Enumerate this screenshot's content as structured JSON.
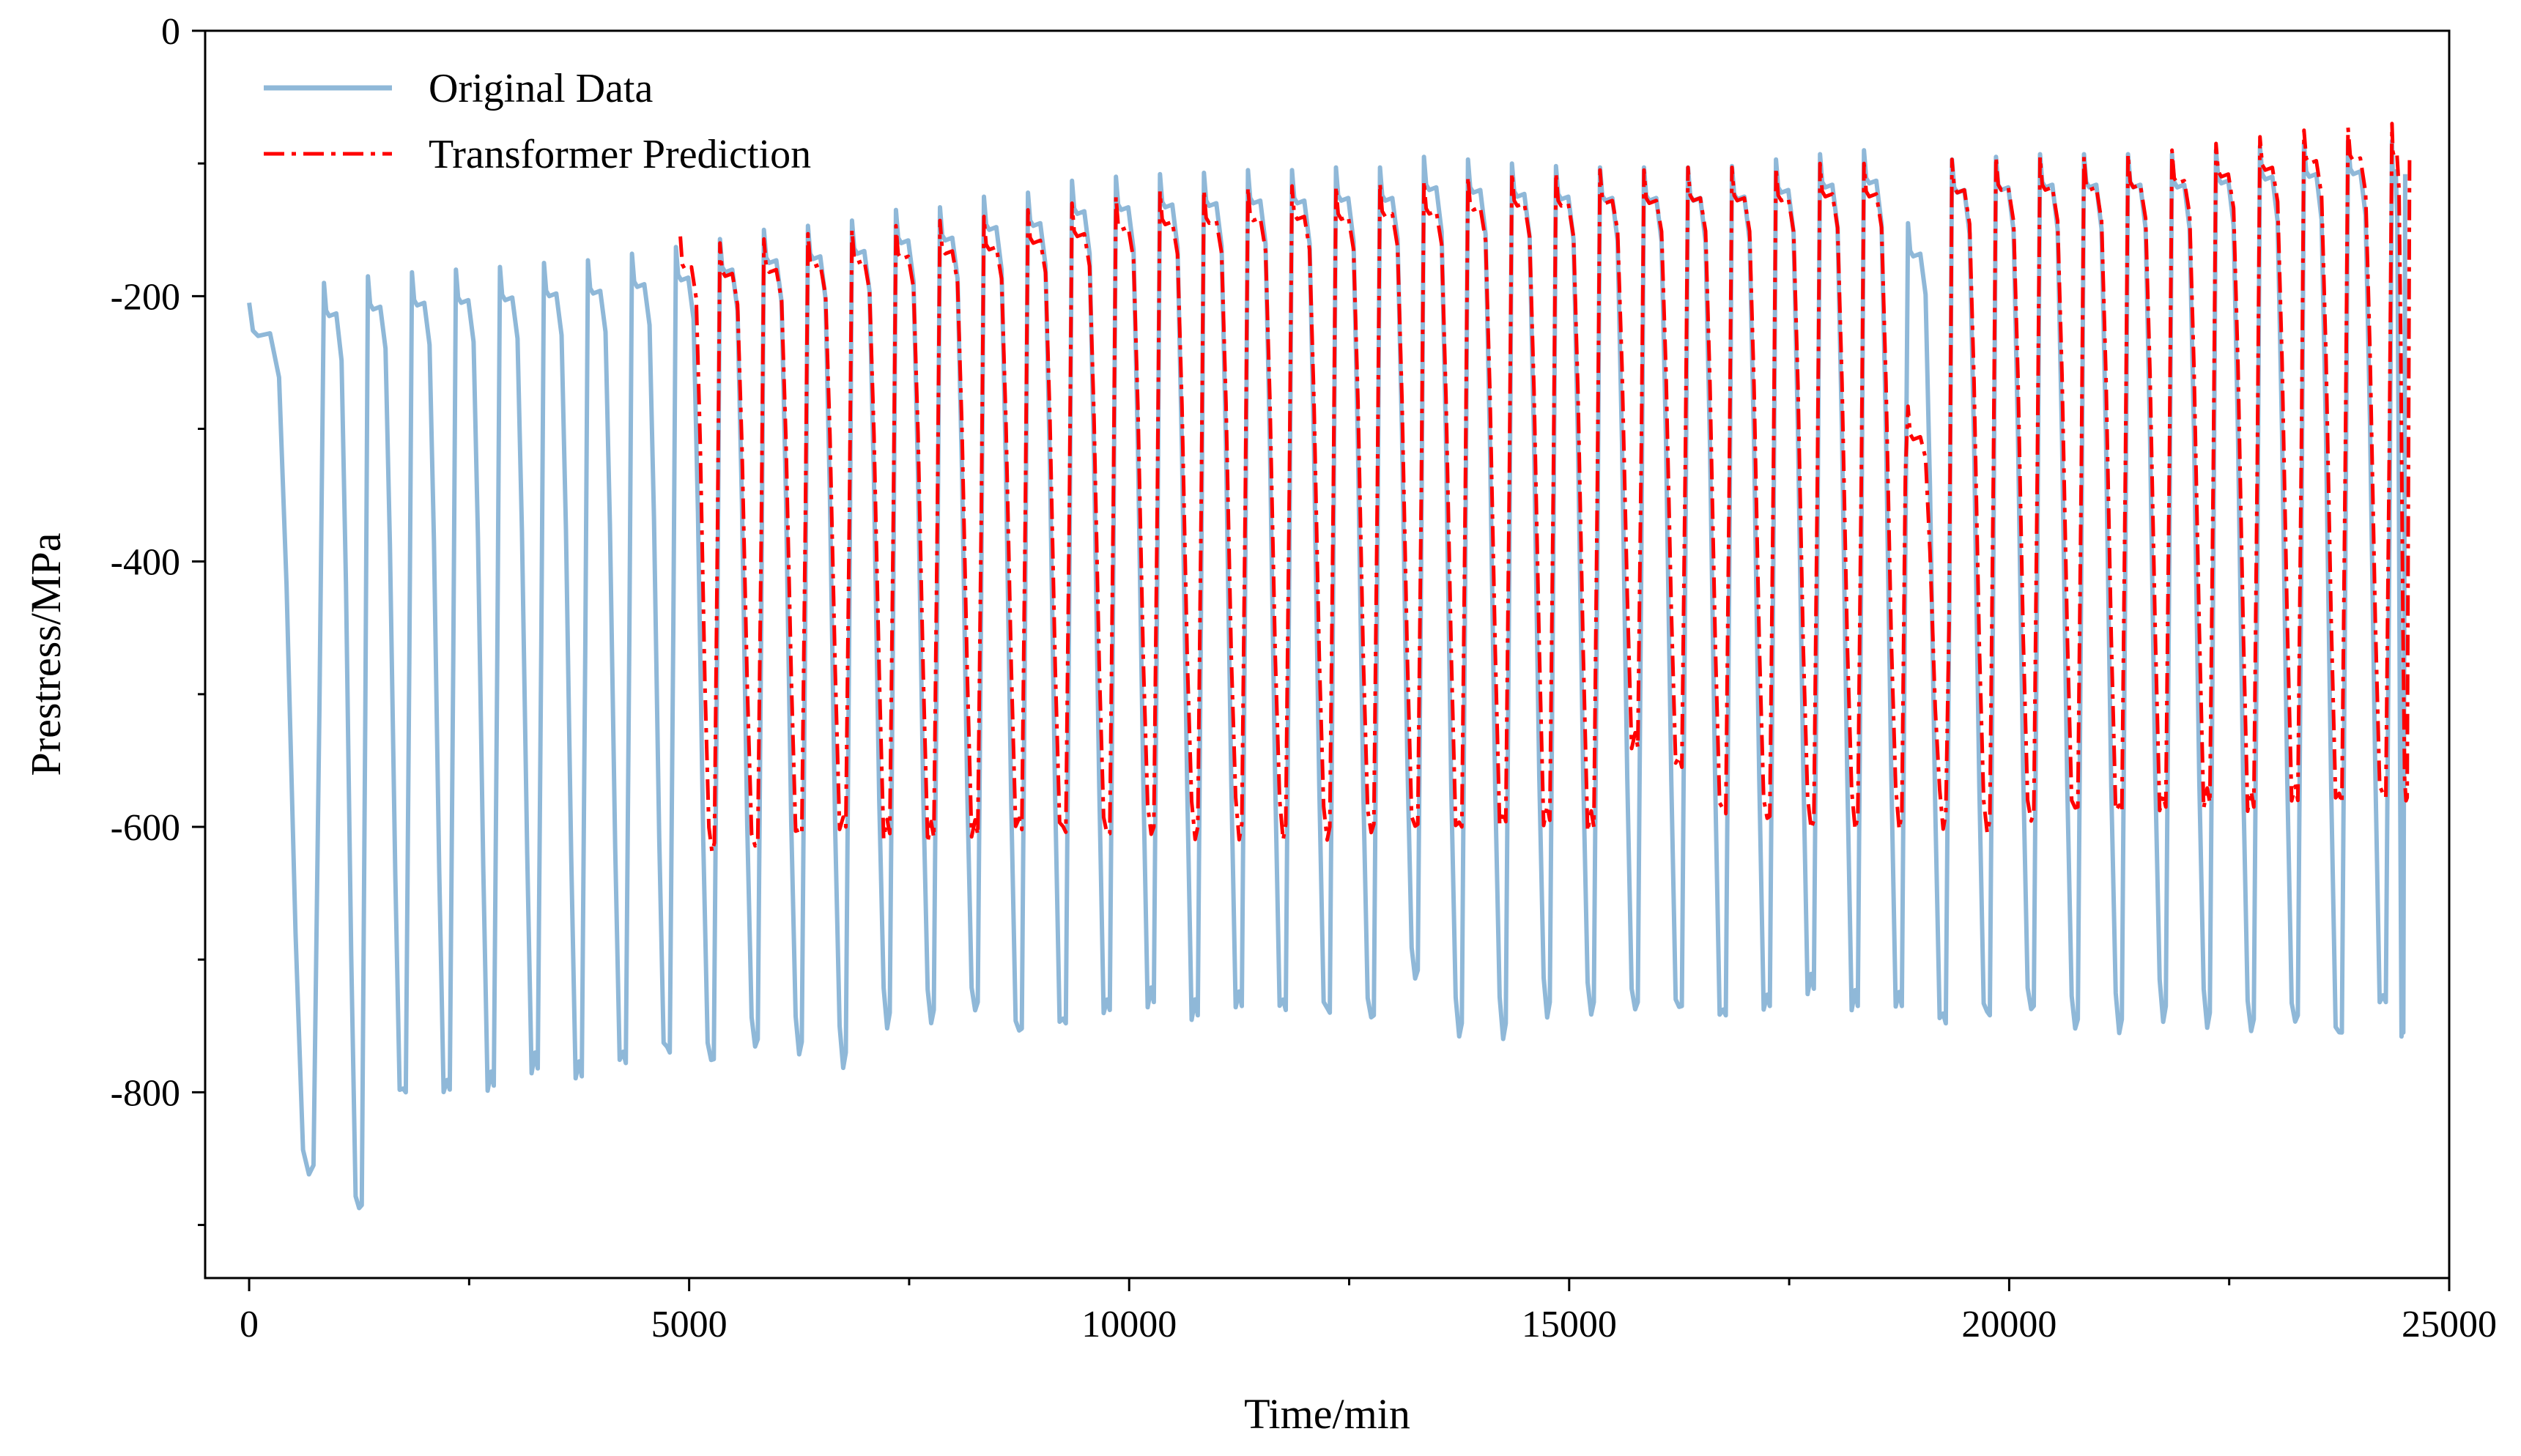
{
  "chart_data": {
    "type": "line",
    "title": "",
    "xlabel": "Time/min",
    "ylabel": "Prestress/MPa",
    "xlim": [
      -500,
      25000
    ],
    "ylim": [
      -940,
      0
    ],
    "x_ticks": [
      0,
      5000,
      10000,
      15000,
      20000,
      25000
    ],
    "x_tick_labels": [
      "0",
      "5000",
      "10000",
      "15000",
      "20000",
      "25000"
    ],
    "y_ticks": [
      0,
      -200,
      -400,
      -600,
      -800
    ],
    "y_tick_labels": [
      "0",
      "-200",
      "-400",
      "-600",
      "-800"
    ],
    "grid": false,
    "legend_position": "top-left",
    "series": [
      {
        "name": "Original Data",
        "color": "#8fb8d8",
        "style": "solid",
        "x_start": 0,
        "x_end": 24500,
        "cycle_start_times": [
          0,
          850,
          1350,
          1850,
          2350,
          2850,
          3350,
          3850,
          4350,
          4850,
          5350,
          5850,
          6350,
          6850,
          7350,
          7850,
          8350,
          8850,
          9350,
          9850,
          10350,
          10850,
          11350,
          11850,
          12350,
          12850,
          13350,
          13850,
          14350,
          14850,
          15350,
          15850,
          16350,
          16850,
          17350,
          17850,
          18350,
          18850,
          19350,
          19850,
          20350,
          20850,
          21350,
          21850,
          22350,
          22850,
          23350,
          23850,
          24350
        ],
        "peaks": [
          -230,
          -215,
          -210,
          -207,
          -205,
          -203,
          -200,
          -198,
          -193,
          -188,
          -182,
          -175,
          -172,
          -168,
          -160,
          -158,
          -150,
          -147,
          -138,
          -135,
          -133,
          -132,
          -130,
          -130,
          -128,
          -128,
          -120,
          -122,
          -125,
          -127,
          -128,
          -128,
          -128,
          -127,
          -122,
          -118,
          -115,
          -170,
          -122,
          -120,
          -118,
          -118,
          -118,
          -118,
          -115,
          -112,
          -110,
          -108,
          -108
        ],
        "troughs": [
          -855,
          -885,
          -800,
          -798,
          -795,
          -782,
          -788,
          -778,
          -770,
          -775,
          -760,
          -762,
          -770,
          -740,
          -738,
          -732,
          -752,
          -748,
          -738,
          -732,
          -742,
          -735,
          -738,
          -740,
          -742,
          -708,
          -748,
          -748,
          -732,
          -732,
          -732,
          -735,
          -742,
          -735,
          -722,
          -735,
          -735,
          -748,
          -742,
          -735,
          -745,
          -745,
          -735,
          -740,
          -745,
          -742,
          -755,
          -732,
          -755
        ]
      },
      {
        "name": "Transformer Prediction",
        "color": "#ff0000",
        "style": "dash-dot",
        "x_start": 4900,
        "x_end": 24550,
        "cycle_start_times": [
          4900,
          5350,
          5850,
          6350,
          6850,
          7350,
          7850,
          8350,
          8850,
          9350,
          9850,
          10350,
          10850,
          11350,
          11850,
          12350,
          12850,
          13350,
          13850,
          14350,
          14850,
          15350,
          15850,
          16350,
          16850,
          17350,
          17850,
          18350,
          18850,
          19350,
          19850,
          20350,
          20850,
          21350,
          21850,
          22350,
          22850,
          23350,
          23850,
          24350
        ],
        "peaks": [
          -180,
          -185,
          -182,
          -178,
          -175,
          -172,
          -168,
          -165,
          -160,
          -155,
          -150,
          -146,
          -145,
          -143,
          -142,
          -142,
          -140,
          -138,
          -135,
          -132,
          -132,
          -130,
          -130,
          -128,
          -128,
          -128,
          -125,
          -125,
          -308,
          -122,
          -120,
          -120,
          -120,
          -118,
          -115,
          -110,
          -105,
          -100,
          -98,
          -95
        ],
        "troughs": [
          -612,
          -612,
          -605,
          -600,
          -605,
          -608,
          -606,
          -602,
          -604,
          -605,
          -600,
          -600,
          -598,
          -598,
          -600,
          -598,
          -598,
          -600,
          -596,
          -595,
          -600,
          -540,
          -555,
          -590,
          -592,
          -595,
          -592,
          -590,
          -590,
          -595,
          -590,
          -585,
          -588,
          -585,
          -582,
          -585,
          -580,
          -582,
          -578,
          -578
        ]
      }
    ]
  }
}
